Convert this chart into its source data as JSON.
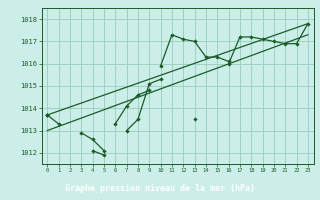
{
  "title": "Graphe pression niveau de la mer (hPa)",
  "bg_color": "#cceee8",
  "plot_bg_color": "#cceee8",
  "grid_color": "#99ccbb",
  "line_color": "#1a5c2a",
  "marker_color": "#1a5c2a",
  "title_bg": "#2d6b3a",
  "title_fg": "#ffffff",
  "xlim": [
    -0.5,
    23.5
  ],
  "ylim": [
    1011.5,
    1018.5
  ],
  "xticks": [
    0,
    1,
    2,
    3,
    4,
    5,
    6,
    7,
    8,
    9,
    10,
    11,
    12,
    13,
    14,
    15,
    16,
    17,
    18,
    19,
    20,
    21,
    22,
    23
  ],
  "yticks": [
    1012,
    1013,
    1014,
    1015,
    1016,
    1017,
    1018
  ],
  "series": [
    [
      1013.7,
      1013.3,
      null,
      1012.9,
      1012.6,
      1012.1,
      null,
      null,
      null,
      null,
      1015.9,
      1017.3,
      1017.1,
      1017.0,
      1016.3,
      1016.3,
      1016.1,
      null,
      null,
      null,
      null,
      null,
      null,
      null
    ],
    [
      null,
      null,
      null,
      null,
      1012.1,
      1011.9,
      null,
      1013.0,
      1013.5,
      1015.1,
      1015.3,
      null,
      null,
      null,
      null,
      null,
      null,
      null,
      null,
      null,
      null,
      null,
      null,
      null
    ],
    [
      1013.7,
      null,
      null,
      null,
      null,
      null,
      1013.3,
      1014.1,
      1014.6,
      1014.8,
      null,
      null,
      null,
      1013.5,
      null,
      null,
      null,
      null,
      null,
      null,
      null,
      null,
      null,
      null
    ],
    [
      1013.7,
      null,
      null,
      null,
      null,
      null,
      null,
      null,
      null,
      null,
      null,
      null,
      null,
      null,
      null,
      null,
      1016.0,
      1017.2,
      1017.2,
      1017.1,
      1017.0,
      1016.9,
      1016.9,
      1017.8
    ]
  ],
  "trend_lines": [
    {
      "x": [
        0,
        23
      ],
      "y": [
        1013.7,
        1017.8
      ]
    },
    {
      "x": [
        0,
        23
      ],
      "y": [
        1013.0,
        1017.3
      ]
    }
  ]
}
